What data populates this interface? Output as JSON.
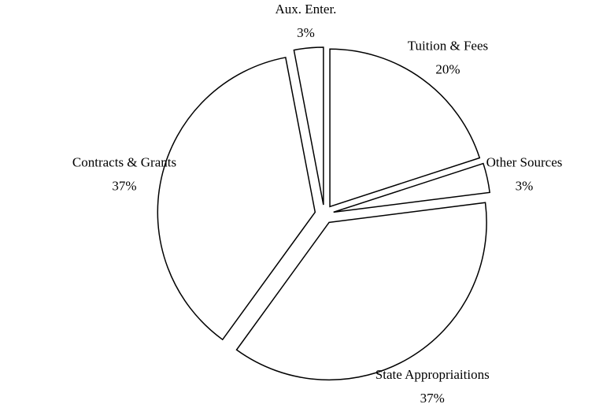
{
  "chart_data": {
    "type": "pie",
    "categories": [
      "Tuition & Fees",
      "Other Sources",
      "State Appropriaitions",
      "Contracts & Grants",
      "Aux. Enter."
    ],
    "values": [
      20,
      3,
      37,
      37,
      3
    ],
    "value_labels": [
      "20%",
      "3%",
      "37%",
      "37%",
      "3%"
    ],
    "color": "#ffffff",
    "edge_color": "#000000"
  }
}
